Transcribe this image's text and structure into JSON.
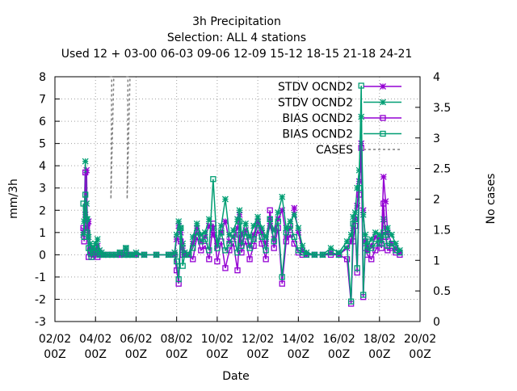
{
  "chart_data": {
    "type": "line",
    "title_lines": [
      "3h Precipitation",
      "Selection: ALL      4 stations",
      "Used  12 + 03-00 06-03 09-06 12-09 15-12 18-15 21-18 24-21"
    ],
    "xlabel": "Date",
    "ylabel": "mm/3h",
    "y2label": "No cases",
    "ylim": [
      -3,
      8
    ],
    "y2lim": [
      0,
      4
    ],
    "xlim": [
      0,
      9
    ],
    "x_ticks": [
      {
        "pos": 0,
        "line1": "02/02",
        "line2": "00Z"
      },
      {
        "pos": 1,
        "line1": "04/02",
        "line2": "00Z"
      },
      {
        "pos": 2,
        "line1": "06/02",
        "line2": "00Z"
      },
      {
        "pos": 3,
        "line1": "08/02",
        "line2": "00Z"
      },
      {
        "pos": 4,
        "line1": "10/02",
        "line2": "00Z"
      },
      {
        "pos": 5,
        "line1": "12/02",
        "line2": "00Z"
      },
      {
        "pos": 6,
        "line1": "14/02",
        "line2": "00Z"
      },
      {
        "pos": 7,
        "line1": "16/02",
        "line2": "00Z"
      },
      {
        "pos": 8,
        "line1": "18/02",
        "line2": "00Z"
      },
      {
        "pos": 9,
        "line1": "20/02",
        "line2": "00Z"
      }
    ],
    "y_ticks": [
      "-3",
      "-2",
      "-1",
      "0",
      "1",
      "2",
      "3",
      "4",
      "5",
      "6",
      "7",
      "8"
    ],
    "y2_ticks": [
      "0",
      "0.5",
      "1",
      "1.5",
      "2",
      "2.5",
      "3",
      "3.5",
      "4"
    ],
    "grid": true,
    "legend_position": "top-right",
    "series": [
      {
        "name": "STDV OCND2",
        "axis": "y",
        "color": "#9400d3",
        "marker": "star",
        "x": [
          0.7,
          0.72,
          0.75,
          0.78,
          0.8,
          0.83,
          0.87,
          0.9,
          0.95,
          1.0,
          1.05,
          1.1,
          1.15,
          1.2,
          1.3,
          1.4,
          1.5,
          1.6,
          1.7,
          1.75,
          1.8,
          1.85,
          1.9,
          2.0,
          2.2,
          2.5,
          2.8,
          2.95,
          3.0,
          3.05,
          3.1,
          3.15,
          3.2,
          3.3,
          3.4,
          3.5,
          3.6,
          3.7,
          3.8,
          3.9,
          4.0,
          4.1,
          4.2,
          4.3,
          4.4,
          4.5,
          4.55,
          4.6,
          4.7,
          4.8,
          4.9,
          5.0,
          5.1,
          5.2,
          5.3,
          5.4,
          5.5,
          5.6,
          5.7,
          5.8,
          5.9,
          6.0,
          6.1,
          6.2,
          6.4,
          6.6,
          6.8,
          7.0,
          7.2,
          7.3,
          7.35,
          7.4,
          7.45,
          7.5,
          7.55,
          7.6,
          7.65,
          7.7,
          7.8,
          7.9,
          8.0,
          8.05,
          8.1,
          8.15,
          8.2,
          8.3,
          8.4,
          8.5
        ],
        "values": [
          0.9,
          1.1,
          1.8,
          3.8,
          1.2,
          1.5,
          0.3,
          0.0,
          0.1,
          0.2,
          0.4,
          0.1,
          0.0,
          0.0,
          0.0,
          0.0,
          0.0,
          0.0,
          0.0,
          0.3,
          0.0,
          0.0,
          0.0,
          0.0,
          0.0,
          0.0,
          0.0,
          0.0,
          0.7,
          1.3,
          1.0,
          0.3,
          0.0,
          0.0,
          0.5,
          1.2,
          0.6,
          0.8,
          1.3,
          0.9,
          0.4,
          1.0,
          1.5,
          0.6,
          0.8,
          1.2,
          1.8,
          0.5,
          1.1,
          0.4,
          0.9,
          1.5,
          1.0,
          0.5,
          1.3,
          0.7,
          1.6,
          2.0,
          0.8,
          1.2,
          2.1,
          1.0,
          0.2,
          0.0,
          0.0,
          0.0,
          0.1,
          0.0,
          0.3,
          0.6,
          1.2,
          1.6,
          2.2,
          3.3,
          5.0,
          2.0,
          0.6,
          0.2,
          0.4,
          0.8,
          0.7,
          0.6,
          3.5,
          2.4,
          1.0,
          0.5,
          0.3,
          0.1
        ]
      },
      {
        "name": "STDV OCND2",
        "axis": "y",
        "color": "#009e73",
        "marker": "star",
        "x": [
          0.7,
          0.72,
          0.75,
          0.78,
          0.8,
          0.83,
          0.87,
          0.9,
          0.95,
          1.0,
          1.05,
          1.1,
          1.15,
          1.2,
          1.3,
          1.4,
          1.5,
          1.6,
          1.7,
          1.75,
          1.8,
          1.85,
          1.9,
          2.0,
          2.2,
          2.5,
          2.8,
          2.95,
          3.0,
          3.05,
          3.1,
          3.15,
          3.2,
          3.3,
          3.4,
          3.5,
          3.6,
          3.7,
          3.8,
          3.9,
          4.0,
          4.1,
          4.2,
          4.3,
          4.4,
          4.5,
          4.55,
          4.6,
          4.7,
          4.8,
          4.9,
          5.0,
          5.1,
          5.2,
          5.3,
          5.4,
          5.5,
          5.6,
          5.7,
          5.8,
          5.9,
          6.0,
          6.1,
          6.2,
          6.4,
          6.6,
          6.8,
          7.0,
          7.2,
          7.3,
          7.35,
          7.4,
          7.45,
          7.5,
          7.55,
          7.6,
          7.65,
          7.7,
          7.8,
          7.9,
          8.0,
          8.05,
          8.1,
          8.15,
          8.2,
          8.3,
          8.4,
          8.5
        ],
        "values": [
          1.0,
          1.5,
          4.2,
          2.3,
          1.6,
          0.8,
          0.5,
          0.2,
          0.3,
          0.5,
          0.7,
          0.2,
          0.1,
          0.0,
          0.0,
          0.0,
          0.0,
          0.1,
          0.0,
          0.3,
          0.0,
          0.0,
          0.0,
          0.1,
          0.0,
          0.0,
          0.0,
          0.1,
          0.9,
          1.5,
          1.2,
          0.5,
          0.1,
          0.0,
          0.8,
          1.4,
          0.9,
          1.0,
          1.6,
          1.2,
          0.6,
          1.3,
          2.5,
          0.9,
          1.1,
          1.6,
          2.0,
          0.9,
          1.4,
          0.8,
          1.3,
          1.7,
          1.2,
          0.8,
          1.6,
          1.1,
          1.9,
          2.6,
          1.2,
          1.5,
          1.8,
          1.2,
          0.4,
          0.1,
          0.0,
          0.0,
          0.3,
          0.1,
          0.6,
          0.9,
          1.7,
          1.9,
          3.0,
          3.8,
          6.2,
          1.8,
          0.9,
          0.4,
          0.7,
          1.0,
          0.9,
          0.8,
          1.6,
          1.2,
          1.2,
          0.9,
          0.5,
          0.2
        ]
      },
      {
        "name": "BIAS OCND2",
        "axis": "y",
        "color": "#9400d3",
        "marker": "square",
        "x": [
          0.7,
          0.72,
          0.75,
          0.78,
          0.8,
          0.83,
          0.87,
          0.9,
          0.95,
          1.0,
          1.05,
          1.1,
          1.15,
          1.2,
          1.3,
          1.4,
          1.5,
          1.6,
          1.7,
          1.75,
          1.8,
          1.85,
          1.9,
          2.0,
          2.2,
          2.5,
          2.8,
          2.95,
          3.0,
          3.05,
          3.1,
          3.15,
          3.2,
          3.3,
          3.4,
          3.5,
          3.6,
          3.7,
          3.8,
          3.9,
          4.0,
          4.1,
          4.2,
          4.3,
          4.4,
          4.5,
          4.55,
          4.6,
          4.7,
          4.8,
          4.9,
          5.0,
          5.1,
          5.2,
          5.3,
          5.4,
          5.5,
          5.6,
          5.7,
          5.8,
          5.9,
          6.0,
          6.1,
          6.2,
          6.4,
          6.6,
          6.8,
          7.0,
          7.2,
          7.3,
          7.35,
          7.4,
          7.45,
          7.5,
          7.55,
          7.6,
          7.65,
          7.7,
          7.8,
          7.9,
          8.0,
          8.05,
          8.1,
          8.15,
          8.2,
          8.3,
          8.4,
          8.5
        ],
        "values": [
          1.2,
          0.6,
          3.7,
          1.2,
          1.4,
          -0.1,
          0.2,
          -0.1,
          0.0,
          0.1,
          -0.1,
          0.0,
          0.0,
          0.0,
          0.0,
          0.0,
          0.0,
          0.0,
          0.0,
          0.1,
          0.0,
          0.0,
          0.0,
          0.0,
          0.0,
          0.0,
          0.0,
          0.0,
          -0.7,
          -1.3,
          0.6,
          0.0,
          0.0,
          0.0,
          -0.2,
          0.8,
          0.2,
          0.4,
          -0.2,
          1.4,
          -0.3,
          0.6,
          -0.6,
          0.2,
          0.5,
          -0.7,
          0.9,
          0.1,
          0.6,
          -0.2,
          0.4,
          1.1,
          0.5,
          -0.2,
          2.0,
          0.3,
          1.2,
          -1.3,
          0.6,
          0.9,
          0.5,
          0.1,
          0.0,
          0.0,
          0.0,
          0.0,
          0.0,
          0.0,
          -0.2,
          -2.2,
          0.6,
          1.3,
          -0.8,
          2.7,
          4.8,
          -1.9,
          0.3,
          0.0,
          -0.2,
          0.2,
          0.5,
          0.3,
          2.3,
          0.8,
          0.2,
          0.3,
          0.1,
          0.0
        ]
      },
      {
        "name": "BIAS OCND2",
        "axis": "y",
        "color": "#009e73",
        "marker": "square",
        "x": [
          0.7,
          0.72,
          0.75,
          0.78,
          0.8,
          0.83,
          0.87,
          0.9,
          0.95,
          1.0,
          1.05,
          1.1,
          1.15,
          1.2,
          1.3,
          1.4,
          1.5,
          1.6,
          1.7,
          1.75,
          1.8,
          1.85,
          1.9,
          2.0,
          2.2,
          2.5,
          2.8,
          2.95,
          3.0,
          3.05,
          3.1,
          3.15,
          3.2,
          3.3,
          3.4,
          3.5,
          3.6,
          3.7,
          3.8,
          3.9,
          4.0,
          4.1,
          4.2,
          4.3,
          4.4,
          4.5,
          4.55,
          4.6,
          4.7,
          4.8,
          4.9,
          5.0,
          5.1,
          5.2,
          5.3,
          5.4,
          5.5,
          5.6,
          5.7,
          5.8,
          5.9,
          6.0,
          6.1,
          6.2,
          6.4,
          6.6,
          6.8,
          7.0,
          7.2,
          7.3,
          7.35,
          7.4,
          7.45,
          7.5,
          7.55,
          7.6,
          7.65,
          7.7,
          7.8,
          7.9,
          8.0,
          8.05,
          8.1,
          8.15,
          8.2,
          8.3,
          8.4,
          8.5
        ],
        "values": [
          2.3,
          0.8,
          2.7,
          1.6,
          1.0,
          0.3,
          0.1,
          -0.1,
          0.2,
          0.3,
          0.1,
          0.0,
          0.0,
          0.0,
          0.0,
          0.0,
          0.0,
          0.1,
          0.0,
          0.3,
          0.0,
          0.0,
          0.0,
          0.0,
          0.0,
          0.0,
          0.0,
          0.0,
          -0.3,
          -1.1,
          1.2,
          -0.5,
          0.0,
          0.0,
          0.3,
          1.0,
          0.6,
          0.7,
          0.2,
          3.4,
          0.3,
          1.0,
          0.2,
          0.5,
          0.9,
          0.1,
          1.5,
          0.4,
          1.0,
          0.3,
          0.7,
          1.4,
          0.8,
          0.2,
          1.6,
          0.6,
          1.5,
          -1.0,
          1.0,
          1.3,
          0.8,
          0.2,
          0.1,
          0.0,
          0.0,
          0.0,
          0.1,
          0.0,
          0.4,
          -2.1,
          1.4,
          1.6,
          -0.6,
          3.0,
          7.6,
          -1.8,
          0.6,
          0.2,
          0.3,
          0.5,
          0.7,
          0.5,
          1.0,
          0.9,
          0.4,
          0.5,
          0.2,
          0.1
        ]
      },
      {
        "name": "CASES",
        "axis": "y2",
        "color": "#808080",
        "marker": "none",
        "dashed": true,
        "segments": [
          {
            "x": [
              1.35,
              1.4,
              1.38,
              1.45
            ],
            "values": [
              4.0,
              4.0,
              2.0,
              4.0
            ]
          },
          {
            "x": [
              1.75,
              1.8,
              1.78,
              1.85
            ],
            "values": [
              4.0,
              4.0,
              2.0,
              4.0
            ]
          }
        ]
      }
    ]
  }
}
